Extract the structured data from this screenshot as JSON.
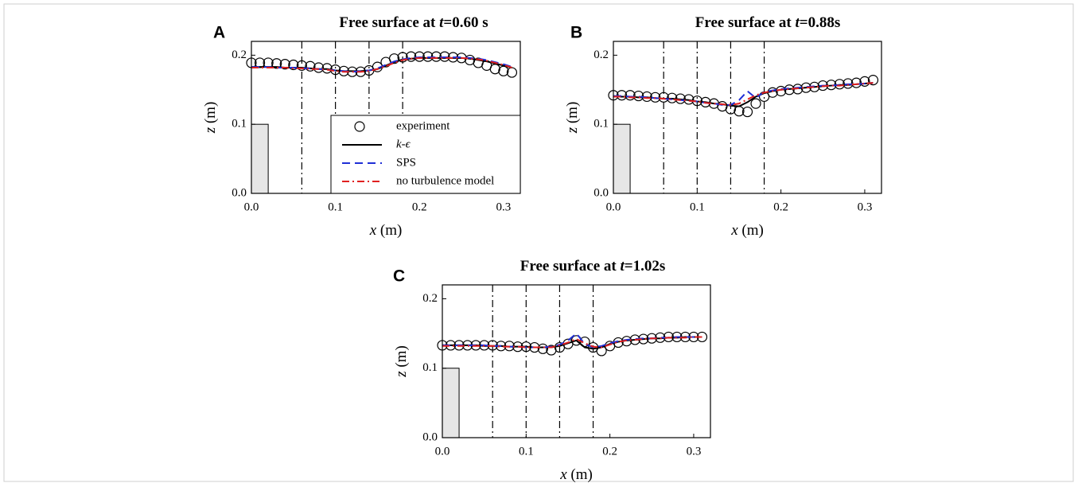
{
  "chart_data": [
    {
      "type": "line",
      "panel_label": "A",
      "title": [
        "Free surface at ",
        "t",
        "=0.60 s"
      ],
      "xlabel": [
        "x",
        " (m)"
      ],
      "ylabel": [
        "z",
        " (m)"
      ],
      "xlim": [
        0,
        0.32
      ],
      "ylim": [
        0,
        0.22
      ],
      "xticks": [
        {
          "value": 0,
          "label": "0.0"
        },
        0.1,
        0.2,
        0.3
      ],
      "yticks": [
        {
          "value": 0,
          "label": "0.0"
        },
        0.1,
        0.2
      ],
      "vlines": [
        0.06,
        0.1,
        0.14,
        0.18
      ],
      "block": {
        "x": [
          0,
          0.02
        ],
        "height": 0.1
      },
      "legend": "lower right",
      "x": [
        0,
        0.01,
        0.02,
        0.03,
        0.04,
        0.05,
        0.06,
        0.07,
        0.08,
        0.09,
        0.1,
        0.11,
        0.12,
        0.13,
        0.14,
        0.15,
        0.16,
        0.17,
        0.18,
        0.19,
        0.2,
        0.21,
        0.22,
        0.23,
        0.24,
        0.25,
        0.26,
        0.27,
        0.28,
        0.29,
        0.3,
        0.31
      ],
      "series": [
        {
          "name": "experiment",
          "color": "#000000",
          "style": "markers",
          "values": [
            0.189,
            0.189,
            0.189,
            0.188,
            0.187,
            0.186,
            0.185,
            0.184,
            0.182,
            0.181,
            0.179,
            0.177,
            0.176,
            0.176,
            0.178,
            0.183,
            0.19,
            0.195,
            0.197,
            0.198,
            0.198,
            0.198,
            0.198,
            0.198,
            0.197,
            0.196,
            0.193,
            0.189,
            0.185,
            0.18,
            0.177,
            0.175
          ]
        },
        {
          "name": "k-ϵ",
          "color": "#000000",
          "style": "solid",
          "values": [
            0.183,
            0.183,
            0.183,
            0.183,
            0.182,
            0.182,
            0.182,
            0.181,
            0.18,
            0.18,
            0.178,
            0.177,
            0.177,
            0.177,
            0.178,
            0.18,
            0.185,
            0.19,
            0.194,
            0.195,
            0.196,
            0.196,
            0.196,
            0.196,
            0.196,
            0.196,
            0.195,
            0.193,
            0.191,
            0.188,
            0.185,
            0.182
          ]
        },
        {
          "name": "SPS",
          "color": "#1f2fd6",
          "style": "dashed",
          "values": [
            0.183,
            0.183,
            0.183,
            0.182,
            0.182,
            0.182,
            0.181,
            0.181,
            0.18,
            0.179,
            0.178,
            0.177,
            0.176,
            0.177,
            0.178,
            0.181,
            0.186,
            0.191,
            0.194,
            0.196,
            0.197,
            0.197,
            0.197,
            0.197,
            0.197,
            0.197,
            0.196,
            0.195,
            0.193,
            0.19,
            0.187,
            0.183
          ]
        },
        {
          "name": "no turbulence model",
          "color": "#e02020",
          "style": "dashdot",
          "values": [
            0.182,
            0.182,
            0.182,
            0.182,
            0.182,
            0.181,
            0.181,
            0.18,
            0.18,
            0.179,
            0.177,
            0.176,
            0.176,
            0.176,
            0.177,
            0.18,
            0.184,
            0.189,
            0.193,
            0.195,
            0.196,
            0.196,
            0.196,
            0.196,
            0.196,
            0.196,
            0.195,
            0.194,
            0.192,
            0.189,
            0.186,
            0.182
          ]
        }
      ]
    },
    {
      "type": "line",
      "panel_label": "B",
      "title": [
        "Free surface at ",
        "t",
        "=0.88s"
      ],
      "xlabel": [
        "x",
        " (m)"
      ],
      "ylabel": [
        "z",
        " (m)"
      ],
      "xlim": [
        0,
        0.32
      ],
      "ylim": [
        0,
        0.22
      ],
      "xticks": [
        {
          "value": 0,
          "label": "0.0"
        },
        0.1,
        0.2,
        0.3
      ],
      "yticks": [
        {
          "value": 0,
          "label": "0.0"
        },
        0.1,
        0.2
      ],
      "vlines": [
        0.06,
        0.1,
        0.14,
        0.18
      ],
      "block": {
        "x": [
          0,
          0.02
        ],
        "height": 0.1
      },
      "x": [
        0,
        0.01,
        0.02,
        0.03,
        0.04,
        0.05,
        0.06,
        0.07,
        0.08,
        0.09,
        0.1,
        0.11,
        0.12,
        0.13,
        0.14,
        0.15,
        0.16,
        0.17,
        0.18,
        0.19,
        0.2,
        0.21,
        0.22,
        0.23,
        0.24,
        0.25,
        0.26,
        0.27,
        0.28,
        0.29,
        0.3,
        0.31
      ],
      "series": [
        {
          "name": "experiment",
          "color": "#000000",
          "style": "markers",
          "values": [
            0.142,
            0.142,
            0.142,
            0.141,
            0.14,
            0.139,
            0.139,
            0.138,
            0.137,
            0.136,
            0.134,
            0.132,
            0.13,
            0.126,
            0.122,
            0.119,
            0.118,
            0.13,
            0.14,
            0.146,
            0.148,
            0.15,
            0.151,
            0.153,
            0.154,
            0.156,
            0.157,
            0.158,
            0.159,
            0.16,
            0.162,
            0.164
          ]
        },
        {
          "name": "k-ϵ",
          "color": "#000000",
          "style": "solid",
          "values": [
            0.14,
            0.14,
            0.14,
            0.139,
            0.139,
            0.138,
            0.137,
            0.137,
            0.136,
            0.135,
            0.133,
            0.132,
            0.13,
            0.129,
            0.127,
            0.126,
            0.132,
            0.14,
            0.145,
            0.148,
            0.15,
            0.151,
            0.152,
            0.153,
            0.154,
            0.155,
            0.156,
            0.157,
            0.157,
            0.158,
            0.159,
            0.16
          ]
        },
        {
          "name": "SPS",
          "color": "#1f2fd6",
          "style": "dashed",
          "values": [
            0.141,
            0.141,
            0.14,
            0.14,
            0.139,
            0.138,
            0.137,
            0.136,
            0.135,
            0.134,
            0.133,
            0.131,
            0.13,
            0.128,
            0.128,
            0.135,
            0.148,
            0.138,
            0.147,
            0.149,
            0.151,
            0.152,
            0.153,
            0.154,
            0.155,
            0.156,
            0.156,
            0.157,
            0.158,
            0.158,
            0.159,
            0.16
          ]
        },
        {
          "name": "no turbulence model",
          "color": "#e02020",
          "style": "dashdot",
          "values": [
            0.14,
            0.14,
            0.139,
            0.139,
            0.138,
            0.138,
            0.137,
            0.136,
            0.135,
            0.134,
            0.133,
            0.131,
            0.13,
            0.129,
            0.128,
            0.13,
            0.136,
            0.142,
            0.146,
            0.148,
            0.15,
            0.151,
            0.152,
            0.153,
            0.154,
            0.155,
            0.156,
            0.156,
            0.157,
            0.158,
            0.159,
            0.16
          ]
        }
      ]
    },
    {
      "type": "line",
      "panel_label": "C",
      "title": [
        "Free surface at ",
        "t",
        "=1.02s"
      ],
      "xlabel": [
        "x",
        " (m)"
      ],
      "ylabel": [
        "z",
        " (m)"
      ],
      "xlim": [
        0,
        0.32
      ],
      "ylim": [
        0,
        0.22
      ],
      "xticks": [
        {
          "value": 0,
          "label": "0.0"
        },
        0.1,
        0.2,
        0.3
      ],
      "yticks": [
        {
          "value": 0,
          "label": "0.0"
        },
        0.1,
        0.2
      ],
      "vlines": [
        0.06,
        0.1,
        0.14,
        0.18
      ],
      "block": {
        "x": [
          0,
          0.02
        ],
        "height": 0.1
      },
      "x": [
        0,
        0.01,
        0.02,
        0.03,
        0.04,
        0.05,
        0.06,
        0.07,
        0.08,
        0.09,
        0.1,
        0.11,
        0.12,
        0.13,
        0.14,
        0.15,
        0.16,
        0.17,
        0.18,
        0.19,
        0.2,
        0.21,
        0.22,
        0.23,
        0.24,
        0.25,
        0.26,
        0.27,
        0.28,
        0.29,
        0.3,
        0.31
      ],
      "series": [
        {
          "name": "experiment",
          "color": "#000000",
          "style": "markers",
          "values": [
            0.133,
            0.133,
            0.133,
            0.133,
            0.133,
            0.133,
            0.133,
            0.132,
            0.132,
            0.131,
            0.131,
            0.13,
            0.128,
            0.126,
            0.13,
            0.135,
            0.14,
            0.138,
            0.13,
            0.125,
            0.132,
            0.137,
            0.139,
            0.141,
            0.142,
            0.143,
            0.144,
            0.145,
            0.145,
            0.145,
            0.145,
            0.145
          ]
        },
        {
          "name": "k-ϵ",
          "color": "#000000",
          "style": "solid",
          "values": [
            0.133,
            0.133,
            0.133,
            0.133,
            0.133,
            0.132,
            0.132,
            0.132,
            0.131,
            0.131,
            0.131,
            0.13,
            0.13,
            0.13,
            0.132,
            0.136,
            0.14,
            0.13,
            0.128,
            0.13,
            0.135,
            0.138,
            0.14,
            0.141,
            0.142,
            0.143,
            0.143,
            0.144,
            0.144,
            0.145,
            0.145,
            0.145
          ]
        },
        {
          "name": "SPS",
          "color": "#1f2fd6",
          "style": "dashed",
          "values": [
            0.133,
            0.133,
            0.133,
            0.133,
            0.133,
            0.133,
            0.132,
            0.132,
            0.131,
            0.131,
            0.13,
            0.13,
            0.13,
            0.131,
            0.134,
            0.14,
            0.15,
            0.135,
            0.13,
            0.132,
            0.136,
            0.139,
            0.141,
            0.142,
            0.143,
            0.143,
            0.144,
            0.144,
            0.145,
            0.145,
            0.145,
            0.145
          ]
        },
        {
          "name": "no turbulence model",
          "color": "#e02020",
          "style": "dashdot",
          "values": [
            0.132,
            0.132,
            0.132,
            0.132,
            0.132,
            0.132,
            0.132,
            0.131,
            0.131,
            0.131,
            0.13,
            0.13,
            0.13,
            0.13,
            0.133,
            0.137,
            0.142,
            0.136,
            0.131,
            0.13,
            0.134,
            0.138,
            0.14,
            0.141,
            0.142,
            0.143,
            0.143,
            0.144,
            0.144,
            0.144,
            0.145,
            0.145
          ]
        }
      ]
    }
  ]
}
